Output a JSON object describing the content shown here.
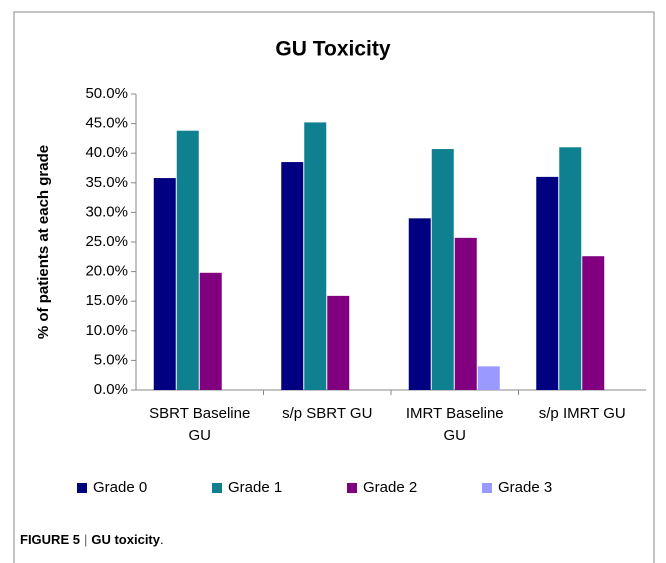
{
  "chart_data": {
    "type": "bar",
    "title": "GU Toxicity",
    "y_label": "% of patients at each grade",
    "categories": [
      "SBRT Baseline GU",
      "s/p SBRT GU",
      "IMRT Baseline GU",
      "s/p IMRT GU"
    ],
    "series": [
      {
        "name": "Grade 0",
        "color": "#000080",
        "values": [
          35.8,
          38.5,
          29.0,
          36.0
        ]
      },
      {
        "name": "Grade 1",
        "color": "#0e8090",
        "values": [
          43.8,
          45.2,
          40.7,
          41.0
        ]
      },
      {
        "name": "Grade 2",
        "color": "#800080",
        "values": [
          19.8,
          15.9,
          25.7,
          22.6
        ]
      },
      {
        "name": "Grade 3",
        "color": "#9999ff",
        "values": [
          0,
          0,
          4.0,
          0
        ]
      }
    ],
    "ylim": [
      0,
      50
    ],
    "yticks": [
      {
        "value": 0,
        "label": "0.0%"
      },
      {
        "value": 5,
        "label": "5.0%"
      },
      {
        "value": 10,
        "label": "10.0%"
      },
      {
        "value": 15,
        "label": "15.0%"
      },
      {
        "value": 20,
        "label": "20.0%"
      },
      {
        "value": 25,
        "label": "25.0%"
      },
      {
        "value": 30,
        "label": "30.0%"
      },
      {
        "value": 35,
        "label": "35.0%"
      },
      {
        "value": 40,
        "label": "40.0%"
      },
      {
        "value": 45,
        "label": "45.0%"
      },
      {
        "value": 50,
        "label": "50.0%"
      }
    ],
    "grid": false,
    "legend": "bottom"
  },
  "caption": {
    "label": "FIGURE 5",
    "separator": "|",
    "text": "GU toxicity",
    "end": "."
  }
}
